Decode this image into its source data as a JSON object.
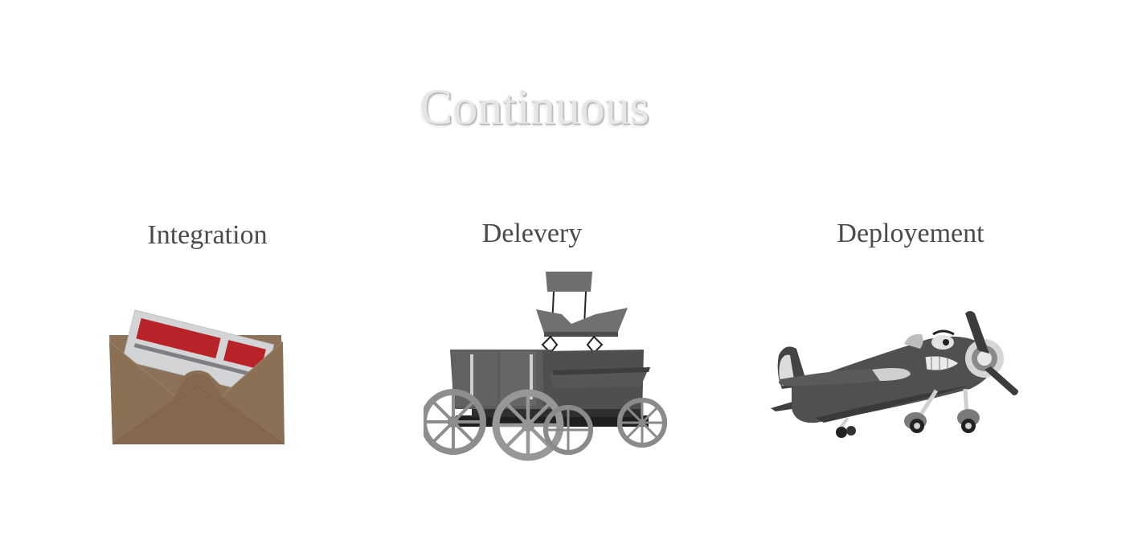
{
  "title": "Continuous",
  "stages": [
    {
      "label": "Integration",
      "icon": "envelope-icon"
    },
    {
      "label": "Delevery",
      "icon": "wagon-icon"
    },
    {
      "label": "Deployement",
      "icon": "airplane-icon"
    }
  ],
  "colors": {
    "title_fill": "#e6e6e6",
    "label_text": "#4a4a4a",
    "envelope_brown": "#8b7259",
    "letter_red": "#b8232a",
    "wagon_gray": "#5a5a5a",
    "plane_gray": "#4e4e4e"
  }
}
